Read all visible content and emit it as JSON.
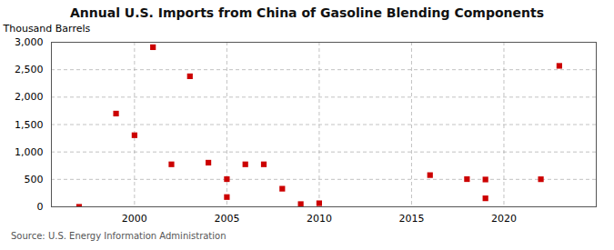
{
  "chart_data": {
    "type": "scatter",
    "title": "Annual U.S. Imports from China of Gasoline Blending Components",
    "ylabel": "Thousand Barrels",
    "source": "Source: U.S. Energy Information Administration",
    "x": [
      1997,
      1999,
      2000,
      2001,
      2002,
      2003,
      2004,
      2005,
      2005,
      2006,
      2007,
      2008,
      2009,
      2010,
      2016,
      2018,
      2019,
      2019,
      2022,
      2023
    ],
    "values": [
      0,
      1700,
      1305,
      2910,
      775,
      2380,
      805,
      178,
      505,
      775,
      775,
      330,
      50,
      65,
      578,
      505,
      155,
      498,
      503,
      2570
    ],
    "color": "#cc0000",
    "marker": "square",
    "xlim": [
      1995.5,
      2025
    ],
    "ylim": [
      0,
      3000
    ],
    "xticks": [
      2000,
      2005,
      2010,
      2015,
      2020
    ],
    "yticks": [
      0,
      500,
      {
        "value": 1000,
        "label": "1,000"
      },
      {
        "value": 1500,
        "label": "1,500"
      },
      {
        "value": 2000,
        "label": "2,000"
      },
      {
        "value": 2500,
        "label": "2,500"
      },
      {
        "value": 3000,
        "label": "3,000"
      }
    ],
    "grid": true
  }
}
